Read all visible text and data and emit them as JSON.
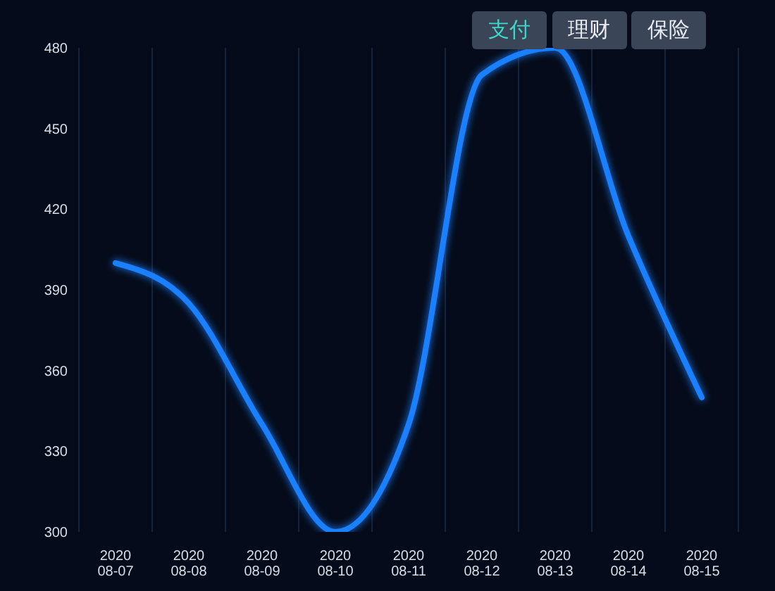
{
  "chart_data": {
    "type": "line",
    "categories": [
      "2020\n08-07",
      "2020\n08-08",
      "2020\n08-09",
      "2020\n08-10",
      "2020\n08-11",
      "2020\n08-12",
      "2020\n08-13",
      "2020\n08-14",
      "2020\n08-15"
    ],
    "series": [
      {
        "color": "#1a80ff",
        "values": [
          400,
          385,
          340,
          300,
          340,
          470,
          480,
          410,
          350
        ]
      }
    ],
    "ylim": [
      300,
      480
    ],
    "yticks": [
      300,
      330,
      360,
      390,
      420,
      450,
      480
    ],
    "grid": "x",
    "marker": "none",
    "line_style": "solid",
    "annotations": [
      "支付",
      "理财",
      "保险"
    ]
  }
}
